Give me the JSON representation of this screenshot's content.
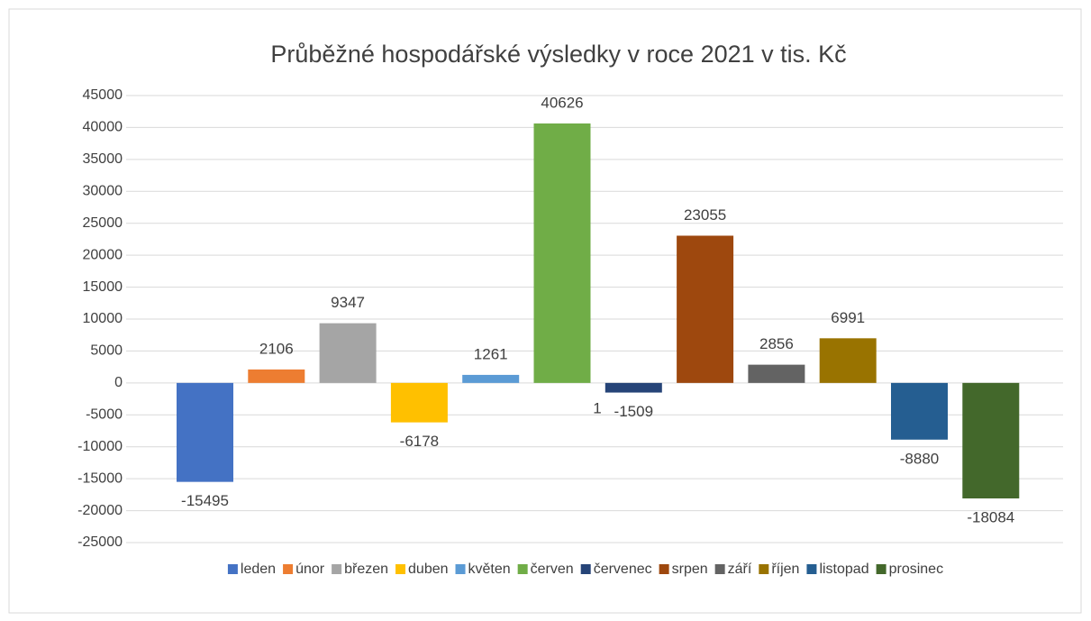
{
  "chart_data": {
    "type": "bar",
    "title": "Průběžné hospodářské výsledky v roce 2021 v tis. Kč",
    "series": [
      {
        "name": "leden",
        "color": "#4472c4",
        "values": [
          -15495
        ]
      },
      {
        "name": "únor",
        "color": "#ed7d31",
        "values": [
          2106
        ]
      },
      {
        "name": "březen",
        "color": "#a5a5a5",
        "values": [
          9347
        ]
      },
      {
        "name": "duben",
        "color": "#ffc000",
        "values": [
          -6178
        ]
      },
      {
        "name": "květen",
        "color": "#5b9bd5",
        "values": [
          1261
        ]
      },
      {
        "name": "červen",
        "color": "#70ad47",
        "values": [
          40626
        ]
      },
      {
        "name": "červenec",
        "color": "#264478",
        "values": [
          -1509
        ]
      },
      {
        "name": "srpen",
        "color": "#9e480e",
        "values": [
          23055
        ]
      },
      {
        "name": "září",
        "color": "#636363",
        "values": [
          2856
        ]
      },
      {
        "name": "říjen",
        "color": "#997300",
        "values": [
          6991
        ]
      },
      {
        "name": "listopad",
        "color": "#255e91",
        "values": [
          -8880
        ]
      },
      {
        "name": "prosinec",
        "color": "#43682b",
        "values": [
          -18084
        ]
      }
    ],
    "annotation": "1",
    "ylim": [
      -25000,
      45000
    ],
    "yticks": [
      -25000,
      -20000,
      -15000,
      -10000,
      -5000,
      0,
      5000,
      10000,
      15000,
      20000,
      25000,
      30000,
      35000,
      40000,
      45000
    ],
    "grid": true,
    "legend": "bottom"
  }
}
